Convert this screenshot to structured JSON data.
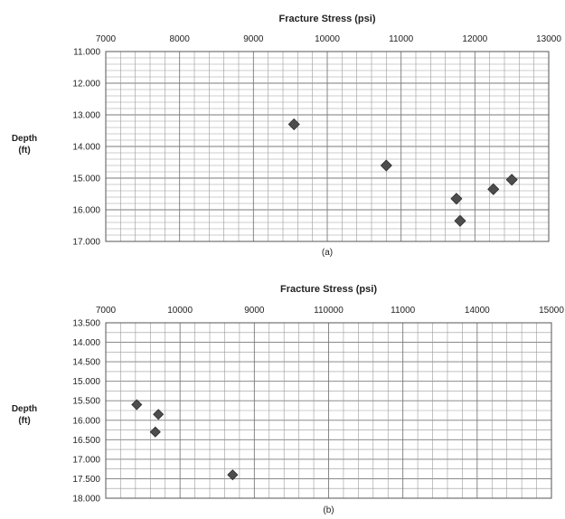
{
  "chart_data": [
    {
      "type": "scatter",
      "title": "Fracture Stress (psi)",
      "ylabel_lines": [
        "Depth",
        "(ft)"
      ],
      "caption": "(a)",
      "x_ticks": [
        "7000",
        "8000",
        "9000",
        "10000",
        "11000",
        "12000",
        "13000"
      ],
      "y_ticks": [
        "11.000",
        "12.000",
        "13.000",
        "14.000",
        "15.000",
        "16.000",
        "17.000"
      ],
      "xlim": [
        7000,
        13000
      ],
      "ylim": [
        11000,
        17000
      ],
      "y_inverted": true,
      "x_axis_position": "top",
      "grid": true,
      "marker": "diamond",
      "marker_color": "#4d4d4d",
      "series": [
        {
          "points": [
            {
              "x": 9550,
              "y": 13300
            },
            {
              "x": 10800,
              "y": 14600
            },
            {
              "x": 11750,
              "y": 15650
            },
            {
              "x": 11800,
              "y": 16350
            },
            {
              "x": 12250,
              "y": 15350
            },
            {
              "x": 12500,
              "y": 15050
            }
          ]
        }
      ]
    },
    {
      "type": "scatter",
      "title": "Fracture Stress (psi)",
      "ylabel_lines": [
        "Depth",
        "(ft)"
      ],
      "caption": "(b)",
      "x_ticks": [
        "7000",
        "10000",
        "9000",
        "110000",
        "11000",
        "14000",
        "15000"
      ],
      "y_ticks": [
        "13.500",
        "14.000",
        "14.500",
        "15.000",
        "15.500",
        "16.000",
        "16.500",
        "17.000",
        "17.500",
        "18.000"
      ],
      "ylim": [
        13500,
        18000
      ],
      "y_inverted": true,
      "x_axis_position": "top",
      "grid": true,
      "marker": "diamond",
      "marker_color": "#4d4d4d",
      "series": [
        {
          "points": [
            {
              "x_tick_fraction": 0.417,
              "y": 15600
            },
            {
              "x_tick_fraction": 0.708,
              "y": 15850
            },
            {
              "x_tick_fraction": 0.667,
              "y": 16300
            },
            {
              "x_tick_fraction": 1.708,
              "y": 17400
            }
          ]
        }
      ]
    }
  ]
}
